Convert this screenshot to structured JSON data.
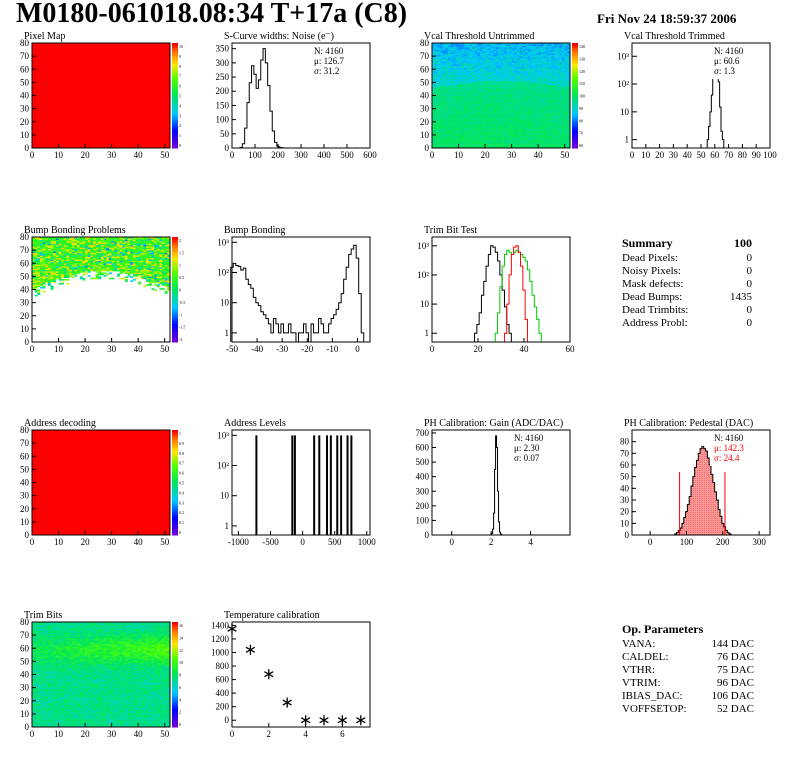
{
  "header": {
    "title": "M0180-061018.08:34 T+17a (C8)",
    "date": "Fri Nov 24 18:59:37 2006"
  },
  "summary": {
    "title": "Summary",
    "value": "100",
    "rows": [
      {
        "label": "Dead Pixels:",
        "value": "0"
      },
      {
        "label": "Noisy Pixels:",
        "value": "0"
      },
      {
        "label": "Mask defects:",
        "value": "0"
      },
      {
        "label": "Dead Bumps:",
        "value": "1435"
      },
      {
        "label": "Dead Trimbits:",
        "value": "0"
      },
      {
        "label": "Address Probl:",
        "value": "0"
      }
    ]
  },
  "op_params": {
    "title": "Op. Parameters",
    "rows": [
      {
        "label": "VANA:",
        "value": "144 DAC"
      },
      {
        "label": "CALDEL:",
        "value": "76 DAC"
      },
      {
        "label": "VTHR:",
        "value": "75 DAC"
      },
      {
        "label": "VTRIM:",
        "value": "96 DAC"
      },
      {
        "label": "IBIAS_DAC:",
        "value": "106 DAC"
      },
      {
        "label": "VOFFSETOP:",
        "value": "52 DAC"
      }
    ]
  },
  "colors": {
    "black": "#000000",
    "red": "#ff0000",
    "green": "#00cc00",
    "fill_pink": "#ff9999"
  },
  "chart_data": [
    {
      "id": "pixel-map",
      "type": "heatmap",
      "title": "Pixel Map",
      "xticks": [
        0,
        10,
        20,
        30,
        40,
        50
      ],
      "yticks": [
        0,
        10,
        20,
        30,
        40,
        50,
        60,
        70,
        80
      ],
      "xlim": [
        0,
        52
      ],
      "ylim": [
        0,
        80
      ],
      "pattern": "uniform",
      "palette_ticks": [
        "10",
        "9",
        "8",
        "7",
        "6",
        "5",
        "4",
        "3",
        "2",
        "1",
        "0"
      ],
      "fill_value": 10
    },
    {
      "id": "noise",
      "type": "histogram",
      "title": "S-Curve widths: Noise (e⁻)",
      "xticks": [
        0,
        100,
        200,
        300,
        400,
        500,
        600
      ],
      "yticks": [
        0,
        50,
        100,
        150,
        200,
        250,
        300,
        350
      ],
      "xlim": [
        0,
        600
      ],
      "ylim": [
        0,
        370
      ],
      "stats": [
        {
          "text": "N: 4160"
        },
        {
          "text": "μ: 126.7"
        },
        {
          "text": "σ: 31.2"
        }
      ],
      "series": [
        {
          "color": "#000",
          "x": [
            40,
            50,
            60,
            70,
            80,
            90,
            100,
            110,
            120,
            130,
            140,
            150,
            160,
            170,
            180,
            190,
            200,
            210,
            220,
            230
          ],
          "values": [
            2,
            15,
            70,
            160,
            230,
            290,
            260,
            210,
            240,
            310,
            350,
            300,
            220,
            130,
            60,
            20,
            6,
            2,
            1,
            0
          ]
        }
      ]
    },
    {
      "id": "vcal-untrimmed",
      "type": "heatmap",
      "title": "Vcal Threshold Untrimmed",
      "xticks": [
        0,
        10,
        20,
        30,
        40,
        50
      ],
      "yticks": [
        0,
        10,
        20,
        30,
        40,
        50,
        60,
        70,
        80
      ],
      "xlim": [
        0,
        52
      ],
      "ylim": [
        0,
        80
      ],
      "pattern": "gradient-vcal",
      "palette_ticks": [
        "140",
        "130",
        "120",
        "110",
        "100",
        "90",
        "80",
        "70",
        "60"
      ]
    },
    {
      "id": "vcal-trimmed",
      "type": "histogram",
      "title": "Vcal Threshold Trimmed",
      "xticks": [
        0,
        10,
        20,
        30,
        40,
        50,
        60,
        70,
        80,
        90,
        100
      ],
      "xlim": [
        0,
        100
      ],
      "log": true,
      "yticks_log": [
        "1",
        "10",
        "10²",
        "10³"
      ],
      "ylim": [
        0.5,
        3000
      ],
      "stats": [
        {
          "text": "N: 4160"
        },
        {
          "text": "μ: 60.6"
        },
        {
          "text": "σ: 1.3"
        }
      ],
      "series": [
        {
          "color": "#000",
          "x": [
            55,
            56,
            57,
            58,
            59,
            60,
            61,
            62,
            63,
            64,
            65,
            66
          ],
          "values": [
            1,
            3,
            10,
            40,
            250,
            1100,
            1500,
            700,
            120,
            15,
            2,
            1
          ]
        }
      ]
    },
    {
      "id": "bump-map",
      "type": "heatmap",
      "title": "Bump Bonding Problems",
      "xticks": [
        0,
        10,
        20,
        30,
        40,
        50
      ],
      "yticks": [
        0,
        10,
        20,
        30,
        40,
        50,
        60,
        70,
        80
      ],
      "xlim": [
        0,
        52
      ],
      "ylim": [
        0,
        80
      ],
      "pattern": "bump",
      "palette_ticks": [
        "2",
        "1.5",
        "1",
        "0.5",
        "0",
        "-0.5",
        "-1",
        "-1.5",
        "-2"
      ]
    },
    {
      "id": "bump-bonding",
      "type": "histogram",
      "title": "Bump Bonding",
      "xticks": [
        -50,
        -40,
        -30,
        -20,
        -10,
        0
      ],
      "xlim": [
        -50,
        5
      ],
      "log": true,
      "yticks_log": [
        "1",
        "10",
        "10²",
        "10³"
      ],
      "ylim": [
        0.5,
        1500
      ],
      "series": [
        {
          "color": "#000",
          "x": [
            -50,
            -49,
            -48,
            -47,
            -46,
            -45,
            -44,
            -43,
            -42,
            -41,
            -40,
            -39,
            -38,
            -37,
            -36,
            -35,
            -34,
            -33,
            -32,
            -31,
            -30,
            -29,
            -28,
            -27,
            -26,
            -25,
            -24,
            -23,
            -22,
            -21,
            -20,
            -19,
            -18,
            -17,
            -16,
            -15,
            -14,
            -13,
            -12,
            -11,
            -10,
            -9,
            -8,
            -7,
            -6,
            -5,
            -4,
            -3,
            -2,
            -1,
            0,
            1,
            2
          ],
          "values": [
            150,
            200,
            170,
            160,
            120,
            140,
            60,
            40,
            30,
            15,
            10,
            8,
            5,
            4,
            3,
            2,
            1,
            3,
            2,
            1,
            2,
            1,
            1,
            2,
            1,
            1,
            0,
            1,
            1,
            2,
            1,
            0,
            2,
            1,
            1,
            3,
            2,
            1,
            1,
            2,
            3,
            4,
            6,
            10,
            20,
            60,
            150,
            400,
            600,
            800,
            300,
            20,
            1
          ]
        }
      ]
    },
    {
      "id": "trim-bit-test",
      "type": "histogram",
      "title": "Trim Bit Test",
      "xticks": [
        0,
        20,
        40,
        60
      ],
      "xlim": [
        0,
        60
      ],
      "log": true,
      "yticks_log": [
        "1",
        "10",
        "10²",
        "10³"
      ],
      "ylim": [
        0.5,
        2000
      ],
      "series": [
        {
          "color": "#000",
          "x": [
            19,
            20,
            21,
            22,
            23,
            24,
            25,
            26,
            27,
            28,
            29,
            30,
            31,
            32,
            33,
            34,
            35
          ],
          "values": [
            1,
            2,
            5,
            20,
            60,
            200,
            500,
            1000,
            900,
            600,
            300,
            100,
            30,
            8,
            2,
            1,
            0
          ]
        },
        {
          "color": "#00cc00",
          "x": [
            28,
            29,
            30,
            31,
            32,
            33,
            34,
            35,
            36,
            37,
            38,
            39,
            40,
            41,
            42,
            43,
            44,
            45,
            46,
            47,
            48
          ],
          "values": [
            1,
            5,
            40,
            200,
            500,
            700,
            600,
            500,
            600,
            700,
            600,
            500,
            400,
            300,
            150,
            60,
            20,
            8,
            3,
            1,
            0
          ]
        },
        {
          "color": "#ff0000",
          "x": [
            32,
            33,
            34,
            35,
            36,
            37,
            38,
            39,
            40,
            41,
            42
          ],
          "values": [
            1,
            10,
            100,
            500,
            900,
            1000,
            600,
            200,
            30,
            3,
            0
          ]
        }
      ]
    },
    {
      "id": "address-decoding",
      "type": "heatmap",
      "title": "Address decoding",
      "xticks": [
        0,
        10,
        20,
        30,
        40,
        50
      ],
      "yticks": [
        0,
        10,
        20,
        30,
        40,
        50,
        60,
        70,
        80
      ],
      "xlim": [
        0,
        52
      ],
      "ylim": [
        0,
        80
      ],
      "pattern": "uniform",
      "palette_ticks": [
        "1",
        "0.9",
        "0.8",
        "0.7",
        "0.6",
        "0.5",
        "0.4",
        "0.3",
        "0.2",
        "0.1",
        "0"
      ],
      "fill_value": 1
    },
    {
      "id": "address-levels",
      "type": "histogram",
      "title": "Address Levels",
      "xticks": [
        -1000,
        -500,
        0,
        500,
        1000
      ],
      "xlim": [
        -1100,
        1050
      ],
      "log": true,
      "yticks_log": [
        "1",
        "10",
        "10²",
        "10³"
      ],
      "ylim": [
        0.5,
        1500
      ],
      "series": [
        {
          "color": "#000",
          "spikes": [
            [
              -720,
              1000
            ],
            [
              -160,
              1000
            ],
            [
              -120,
              1000
            ],
            [
              180,
              1000
            ],
            [
              260,
              1000
            ],
            [
              380,
              1000
            ],
            [
              440,
              1000
            ],
            [
              540,
              1000
            ],
            [
              600,
              1000
            ],
            [
              700,
              1000
            ],
            [
              760,
              1000
            ]
          ]
        }
      ]
    },
    {
      "id": "ph-gain",
      "type": "histogram",
      "title": "PH Calibration: Gain (ADC/DAC)",
      "xticks": [
        0,
        2,
        4
      ],
      "xlim": [
        -1,
        6
      ],
      "ylim": [
        0,
        720
      ],
      "yticks": [
        0,
        100,
        200,
        300,
        400,
        500,
        600,
        700
      ],
      "stats": [
        {
          "text": "N: 4160"
        },
        {
          "text": "μ: 2.30"
        },
        {
          "text": "σ: 0.07"
        }
      ],
      "series": [
        {
          "color": "#000",
          "x": [
            2.0,
            2.05,
            2.1,
            2.15,
            2.2,
            2.25,
            2.3,
            2.35,
            2.4,
            2.45,
            2.5,
            2.55
          ],
          "values": [
            2,
            10,
            40,
            150,
            450,
            680,
            600,
            300,
            90,
            20,
            5,
            1
          ]
        }
      ]
    },
    {
      "id": "ph-pedestal",
      "type": "histogram",
      "title": "PH Calibration: Pedestal (DAC)",
      "xticks": [
        0,
        100,
        200,
        300
      ],
      "xlim": [
        -50,
        330
      ],
      "ylim": [
        0,
        90
      ],
      "yticks": [
        0,
        10,
        20,
        30,
        40,
        50,
        60,
        70,
        80
      ],
      "stats": [
        {
          "text": "N: 4160",
          "color": "#000"
        },
        {
          "text": "μ: 142.3",
          "color": "#ff0000"
        },
        {
          "text": "σ: 24.4",
          "color": "#ff0000"
        }
      ],
      "series": [
        {
          "color": "#000",
          "x": [
            70,
            75,
            80,
            85,
            90,
            95,
            100,
            105,
            110,
            115,
            120,
            125,
            130,
            135,
            140,
            145,
            150,
            155,
            160,
            165,
            170,
            175,
            180,
            185,
            190,
            195,
            200,
            205,
            210,
            215,
            220,
            225
          ],
          "values": [
            1,
            2,
            4,
            6,
            10,
            15,
            20,
            26,
            33,
            42,
            50,
            58,
            64,
            70,
            74,
            76,
            74,
            72,
            66,
            60,
            52,
            45,
            37,
            30,
            22,
            16,
            10,
            7,
            4,
            2,
            1,
            0
          ]
        }
      ],
      "markers": [
        81,
        206
      ],
      "marker_color": "#ff0000"
    },
    {
      "id": "trim-bits",
      "type": "heatmap",
      "title": "Trim Bits",
      "xticks": [
        0,
        10,
        20,
        30,
        40,
        50
      ],
      "yticks": [
        0,
        10,
        20,
        30,
        40,
        50,
        60,
        70,
        80
      ],
      "xlim": [
        0,
        52
      ],
      "ylim": [
        0,
        80
      ],
      "pattern": "trimbits",
      "palette_ticks": [
        "16",
        "14",
        "12",
        "10",
        "8",
        "6",
        "4",
        "2",
        "0"
      ]
    },
    {
      "id": "temperature",
      "type": "scatter",
      "title": "Temperature calibration",
      "xticks": [
        0,
        2,
        4,
        6
      ],
      "xlim": [
        0,
        7.5
      ],
      "ylim": [
        -100,
        1450
      ],
      "yticks": [
        0,
        200,
        400,
        600,
        800,
        1000,
        1200,
        1400
      ],
      "series": [
        {
          "x": [
            0,
            1,
            2,
            3,
            4,
            5,
            6,
            7
          ],
          "y": [
            1350,
            1040,
            680,
            260,
            0,
            0,
            0,
            0
          ]
        }
      ]
    }
  ]
}
